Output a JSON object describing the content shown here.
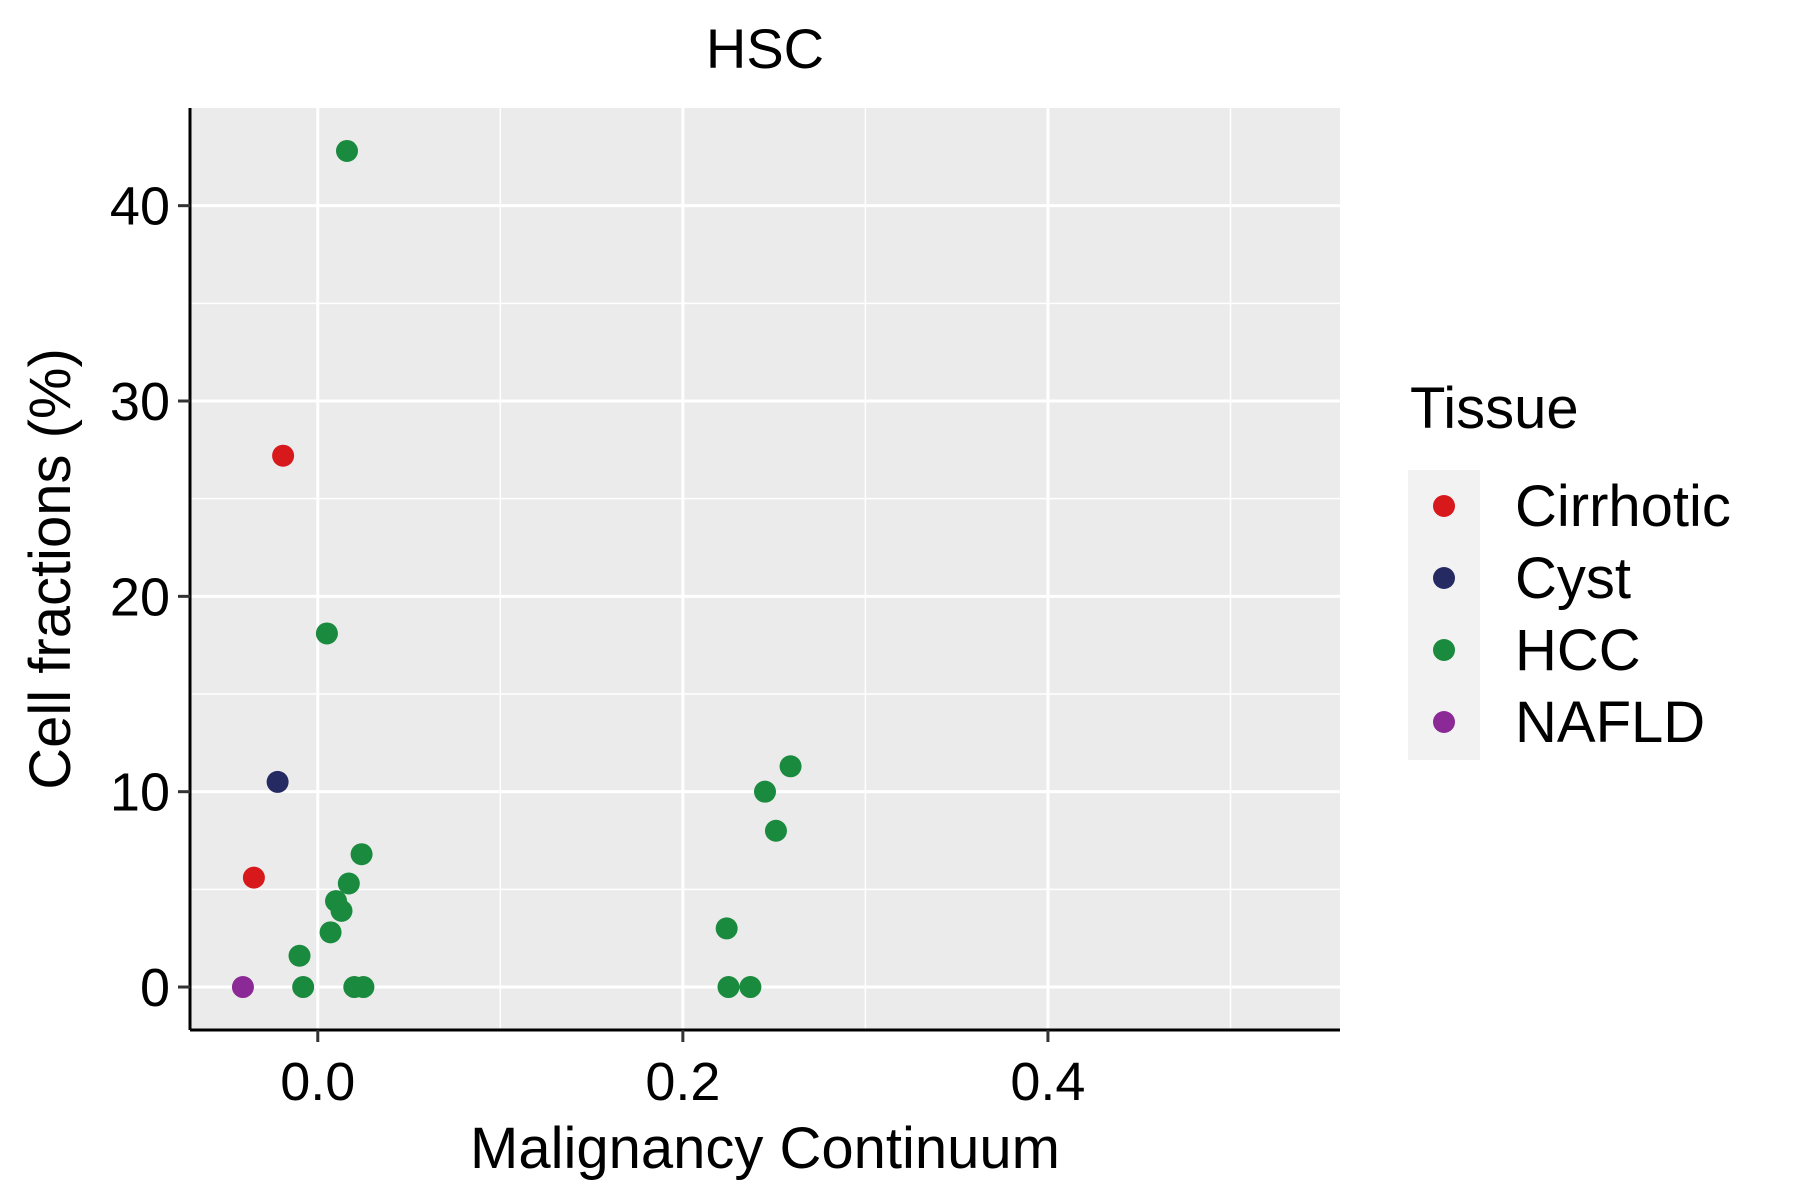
{
  "chart_data": {
    "type": "scatter",
    "title": "HSC",
    "xlabel": "Malignancy Continuum",
    "ylabel": "Cell fractions (%)",
    "xlim": [
      -0.07,
      0.56
    ],
    "ylim": [
      -2.2,
      45
    ],
    "x_ticks": [
      0.0,
      0.2,
      0.4
    ],
    "x_tick_labels": [
      "0.0",
      "0.2",
      "0.4"
    ],
    "y_ticks": [
      0,
      10,
      20,
      30,
      40
    ],
    "y_tick_labels": [
      "0",
      "10",
      "20",
      "30",
      "40"
    ],
    "grid": true,
    "legend": {
      "title": "Tissue",
      "position": "right",
      "entries": [
        {
          "label": "Cirrhotic",
          "color": "#d7191c"
        },
        {
          "label": "Cyst",
          "color": "#252a63"
        },
        {
          "label": "HCC",
          "color": "#1a8a3e"
        },
        {
          "label": "NAFLD",
          "color": "#8b2a96"
        }
      ]
    },
    "series": [
      {
        "name": "Cirrhotic",
        "color": "#d7191c",
        "points": [
          [
            -0.019,
            27.2
          ],
          [
            -0.035,
            5.6
          ]
        ]
      },
      {
        "name": "Cyst",
        "color": "#252a63",
        "points": [
          [
            -0.022,
            10.5
          ]
        ]
      },
      {
        "name": "HCC",
        "color": "#1a8a3e",
        "points": [
          [
            0.016,
            42.8
          ],
          [
            0.005,
            18.1
          ],
          [
            0.259,
            11.3
          ],
          [
            0.245,
            10.0
          ],
          [
            0.251,
            8.0
          ],
          [
            0.024,
            6.8
          ],
          [
            0.017,
            5.3
          ],
          [
            0.01,
            4.4
          ],
          [
            0.013,
            3.9
          ],
          [
            0.007,
            2.8
          ],
          [
            -0.01,
            1.6
          ],
          [
            0.224,
            3.0
          ],
          [
            -0.008,
            0.0
          ],
          [
            0.02,
            0.0
          ],
          [
            0.025,
            0.0
          ],
          [
            0.225,
            0.0
          ],
          [
            0.237,
            0.0
          ]
        ]
      },
      {
        "name": "NAFLD",
        "color": "#8b2a96",
        "points": [
          [
            -0.041,
            0.0
          ]
        ]
      }
    ]
  }
}
